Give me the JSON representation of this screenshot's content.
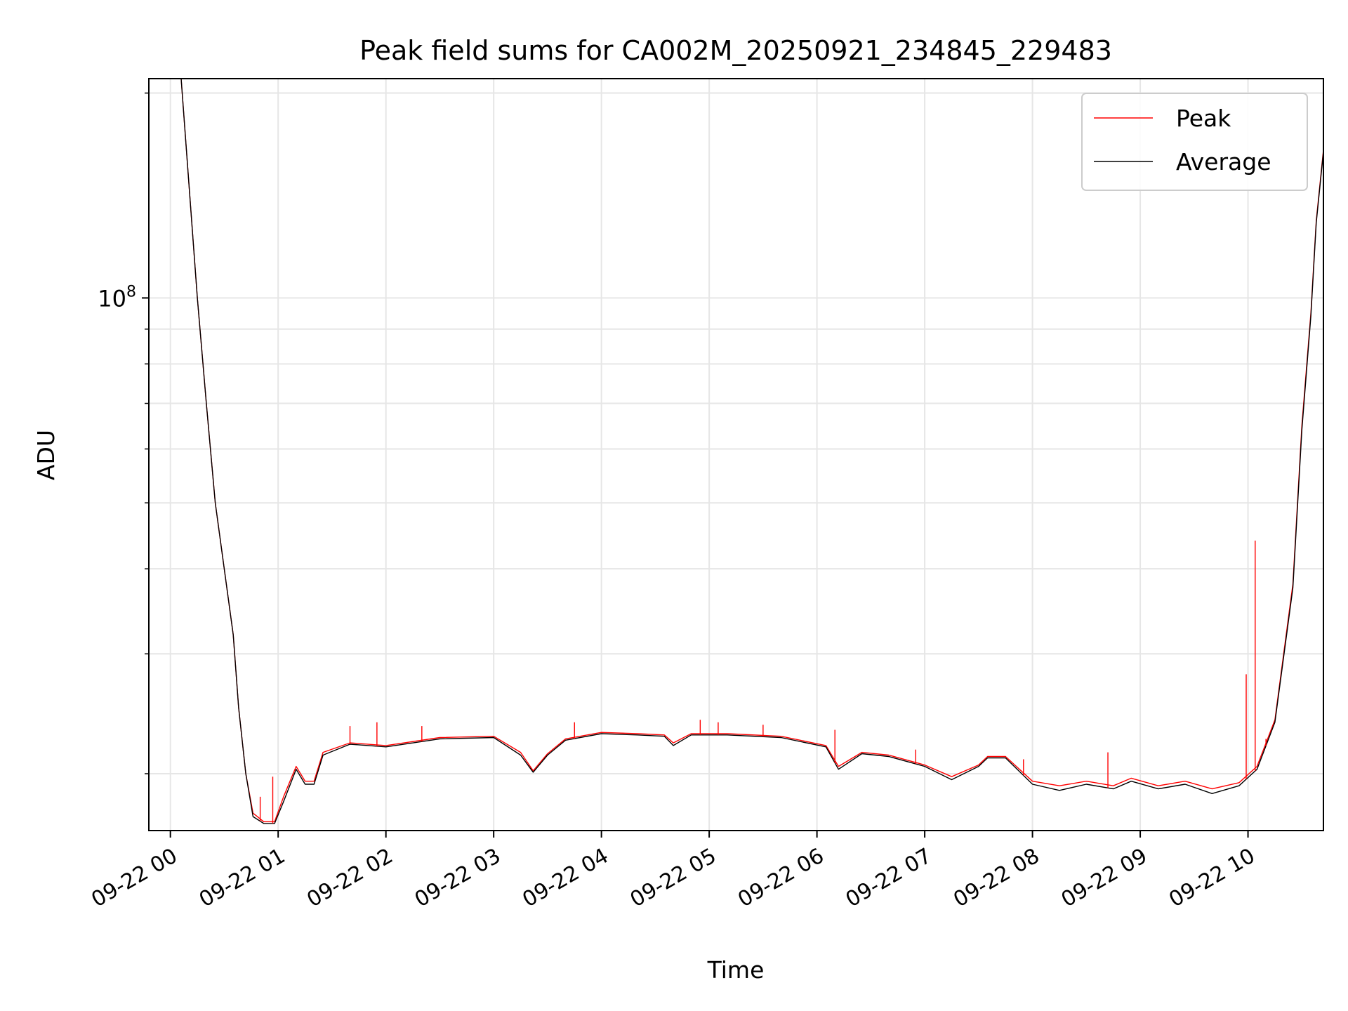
{
  "chart_data": {
    "type": "line",
    "title": "Peak field sums for CA002M_20250921_234845_229483",
    "xlabel": "Time",
    "ylabel": "ADU",
    "y_scale": "log",
    "ylim": [
      16500000,
      210000000
    ],
    "xlim": [
      "2025-09-21 23:48",
      "2025-09-22 10:42"
    ],
    "x_ticks": [
      "2025-09-22 00:00",
      "2025-09-22 01:00",
      "2025-09-22 02:00",
      "2025-09-22 03:00",
      "2025-09-22 04:00",
      "2025-09-22 05:00",
      "2025-09-22 06:00",
      "2025-09-22 07:00",
      "2025-09-22 08:00",
      "2025-09-22 09:00",
      "2025-09-22 10:00"
    ],
    "x_tick_labels": [
      "09-22 00",
      "09-22 01",
      "09-22 02",
      "09-22 03",
      "09-22 04",
      "09-22 05",
      "09-22 06",
      "09-22 07",
      "09-22 08",
      "09-22 09",
      "09-22 10"
    ],
    "y_tick_labels": [
      {
        "value": 100000000,
        "base": "10",
        "exp": "8"
      }
    ],
    "y_minor_ticks": [
      20000000,
      30000000,
      40000000,
      50000000,
      60000000,
      70000000,
      80000000,
      90000000,
      200000000
    ],
    "grid": true,
    "legend_position": "upper right",
    "series": [
      {
        "name": "Peak",
        "color": "#ff0000",
        "points": [
          [
            "2025-09-22 00:06",
            210000000
          ],
          [
            "2025-09-22 00:15",
            100000000
          ],
          [
            "2025-09-22 00:20",
            70000000
          ],
          [
            "2025-09-22 00:25",
            50000000
          ],
          [
            "2025-09-22 00:30",
            40000000
          ],
          [
            "2025-09-22 00:35",
            32000000
          ],
          [
            "2025-09-22 00:38",
            25000000
          ],
          [
            "2025-09-22 00:42",
            20000000
          ],
          [
            "2025-09-22 00:46",
            17500000
          ],
          [
            "2025-09-22 00:52",
            17000000
          ],
          [
            "2025-09-22 00:58",
            17000000
          ],
          [
            "2025-09-22 01:03",
            18500000
          ],
          [
            "2025-09-22 01:10",
            20500000
          ],
          [
            "2025-09-22 01:15",
            19500000
          ],
          [
            "2025-09-22 01:20",
            19500000
          ],
          [
            "2025-09-22 01:25",
            21500000
          ],
          [
            "2025-09-22 01:40",
            22200000
          ],
          [
            "2025-09-22 02:00",
            22000000
          ],
          [
            "2025-09-22 02:30",
            22600000
          ],
          [
            "2025-09-22 03:00",
            22700000
          ],
          [
            "2025-09-22 03:15",
            21500000
          ],
          [
            "2025-09-22 03:22",
            20200000
          ],
          [
            "2025-09-22 03:30",
            21400000
          ],
          [
            "2025-09-22 03:40",
            22500000
          ],
          [
            "2025-09-22 04:00",
            23000000
          ],
          [
            "2025-09-22 04:20",
            22900000
          ],
          [
            "2025-09-22 04:35",
            22800000
          ],
          [
            "2025-09-22 04:40",
            22200000
          ],
          [
            "2025-09-22 04:50",
            22900000
          ],
          [
            "2025-09-22 05:10",
            22900000
          ],
          [
            "2025-09-22 05:40",
            22700000
          ],
          [
            "2025-09-22 06:05",
            22000000
          ],
          [
            "2025-09-22 06:12",
            20500000
          ],
          [
            "2025-09-22 06:25",
            21500000
          ],
          [
            "2025-09-22 06:40",
            21300000
          ],
          [
            "2025-09-22 07:00",
            20600000
          ],
          [
            "2025-09-22 07:15",
            19800000
          ],
          [
            "2025-09-22 07:30",
            20600000
          ],
          [
            "2025-09-22 07:35",
            21200000
          ],
          [
            "2025-09-22 07:45",
            21200000
          ],
          [
            "2025-09-22 08:00",
            19500000
          ],
          [
            "2025-09-22 08:15",
            19200000
          ],
          [
            "2025-09-22 08:30",
            19500000
          ],
          [
            "2025-09-22 08:45",
            19200000
          ],
          [
            "2025-09-22 08:55",
            19700000
          ],
          [
            "2025-09-22 09:10",
            19200000
          ],
          [
            "2025-09-22 09:25",
            19500000
          ],
          [
            "2025-09-22 09:40",
            19000000
          ],
          [
            "2025-09-22 09:55",
            19400000
          ],
          [
            "2025-09-22 10:05",
            20500000
          ],
          [
            "2025-09-22 10:15",
            24000000
          ],
          [
            "2025-09-22 10:25",
            38000000
          ],
          [
            "2025-09-22 10:30",
            65000000
          ],
          [
            "2025-09-22 10:35",
            95000000
          ],
          [
            "2025-09-22 10:38",
            130000000
          ],
          [
            "2025-09-22 10:42",
            165000000
          ]
        ]
      },
      {
        "name": "Average",
        "color": "#000000",
        "points": [
          [
            "2025-09-22 00:06",
            210000000
          ],
          [
            "2025-09-22 00:15",
            100000000
          ],
          [
            "2025-09-22 00:20",
            70000000
          ],
          [
            "2025-09-22 00:25",
            50000000
          ],
          [
            "2025-09-22 00:30",
            40000000
          ],
          [
            "2025-09-22 00:35",
            32000000
          ],
          [
            "2025-09-22 00:38",
            25000000
          ],
          [
            "2025-09-22 00:42",
            20000000
          ],
          [
            "2025-09-22 00:46",
            17300000
          ],
          [
            "2025-09-22 00:52",
            16900000
          ],
          [
            "2025-09-22 00:58",
            16900000
          ],
          [
            "2025-09-22 01:03",
            18200000
          ],
          [
            "2025-09-22 01:10",
            20300000
          ],
          [
            "2025-09-22 01:15",
            19300000
          ],
          [
            "2025-09-22 01:20",
            19300000
          ],
          [
            "2025-09-22 01:25",
            21300000
          ],
          [
            "2025-09-22 01:40",
            22100000
          ],
          [
            "2025-09-22 02:00",
            21900000
          ],
          [
            "2025-09-22 02:30",
            22500000
          ],
          [
            "2025-09-22 03:00",
            22600000
          ],
          [
            "2025-09-22 03:15",
            21300000
          ],
          [
            "2025-09-22 03:22",
            20100000
          ],
          [
            "2025-09-22 03:30",
            21300000
          ],
          [
            "2025-09-22 03:40",
            22400000
          ],
          [
            "2025-09-22 04:00",
            22900000
          ],
          [
            "2025-09-22 04:20",
            22800000
          ],
          [
            "2025-09-22 04:35",
            22700000
          ],
          [
            "2025-09-22 04:40",
            22000000
          ],
          [
            "2025-09-22 04:50",
            22800000
          ],
          [
            "2025-09-22 05:10",
            22800000
          ],
          [
            "2025-09-22 05:40",
            22600000
          ],
          [
            "2025-09-22 06:05",
            21900000
          ],
          [
            "2025-09-22 06:12",
            20300000
          ],
          [
            "2025-09-22 06:25",
            21400000
          ],
          [
            "2025-09-22 06:40",
            21200000
          ],
          [
            "2025-09-22 07:00",
            20500000
          ],
          [
            "2025-09-22 07:15",
            19600000
          ],
          [
            "2025-09-22 07:30",
            20500000
          ],
          [
            "2025-09-22 07:35",
            21100000
          ],
          [
            "2025-09-22 07:45",
            21100000
          ],
          [
            "2025-09-22 08:00",
            19300000
          ],
          [
            "2025-09-22 08:15",
            18900000
          ],
          [
            "2025-09-22 08:30",
            19300000
          ],
          [
            "2025-09-22 08:45",
            19000000
          ],
          [
            "2025-09-22 08:55",
            19500000
          ],
          [
            "2025-09-22 09:10",
            19000000
          ],
          [
            "2025-09-22 09:25",
            19300000
          ],
          [
            "2025-09-22 09:40",
            18700000
          ],
          [
            "2025-09-22 09:55",
            19200000
          ],
          [
            "2025-09-22 10:05",
            20300000
          ],
          [
            "2025-09-22 10:15",
            23800000
          ],
          [
            "2025-09-22 10:25",
            37500000
          ],
          [
            "2025-09-22 10:30",
            64000000
          ],
          [
            "2025-09-22 10:35",
            94000000
          ],
          [
            "2025-09-22 10:38",
            129000000
          ],
          [
            "2025-09-22 10:42",
            164000000
          ]
        ]
      }
    ],
    "peak_spikes": [
      [
        "2025-09-22 00:50",
        18500000
      ],
      [
        "2025-09-22 00:57",
        19800000
      ],
      [
        "2025-09-22 01:40",
        23500000
      ],
      [
        "2025-09-22 01:55",
        23800000
      ],
      [
        "2025-09-22 02:20",
        23500000
      ],
      [
        "2025-09-22 03:45",
        23800000
      ],
      [
        "2025-09-22 04:55",
        24000000
      ],
      [
        "2025-09-22 05:05",
        23800000
      ],
      [
        "2025-09-22 05:30",
        23600000
      ],
      [
        "2025-09-22 06:10",
        23200000
      ],
      [
        "2025-09-22 06:55",
        21700000
      ],
      [
        "2025-09-22 07:55",
        21000000
      ],
      [
        "2025-09-22 08:42",
        21500000
      ],
      [
        "2025-09-22 09:59",
        28000000
      ],
      [
        "2025-09-22 10:04",
        44000000
      ],
      [
        "2025-09-22 10:10",
        22500000
      ]
    ]
  }
}
